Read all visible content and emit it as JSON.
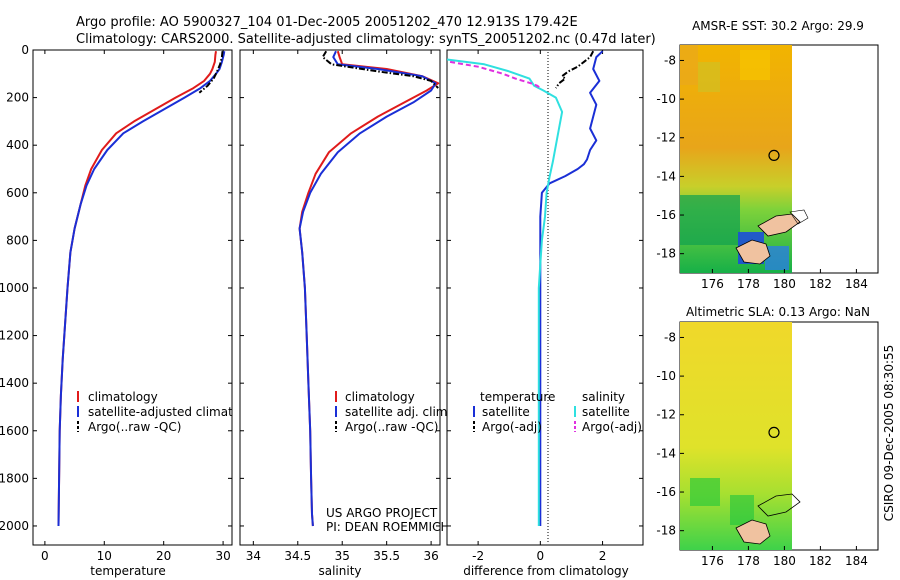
{
  "header": {
    "line1": "Argo profile: AO 5900327_104 01-Dec-2005 20051202_470 12.913S 179.42E",
    "line2": "Climatology: CARS2000. Satellite-adjusted climatology: synTS_20051202.nc (0.47d later)"
  },
  "side_label": "CSIRO 09-Dec-2005 08:30:55",
  "colors": {
    "climatology": "#e01b1b",
    "satellite": "#1a2fd6",
    "argo": "#000000",
    "cyan": "#2fe0e0",
    "magenta": "#e030e0"
  },
  "chart_data": [
    {
      "type": "line",
      "id": "temperature",
      "xlabel": "temperature",
      "xlim": [
        -2,
        31.5
      ],
      "ylim": [
        0,
        2080
      ],
      "xticks": [
        "0",
        "10",
        "20",
        "30"
      ],
      "yticks": [
        "0",
        "200",
        "400",
        "600",
        "800",
        "1000",
        "1200",
        "1400",
        "1600",
        "1800",
        "2000"
      ],
      "legend": [
        "climatology",
        "satellite-adjusted climatology",
        "Argo(..raw -QC)"
      ],
      "series": [
        {
          "name": "climatology",
          "color": "#e01b1b",
          "style": "solid",
          "x": [
            28.8,
            28.7,
            28.6,
            28.2,
            27.8,
            26.8,
            25.0,
            22.0,
            18.5,
            15.0,
            12.0,
            9.6,
            7.8,
            6.8,
            6.0,
            5.0,
            4.3,
            3.8,
            3.4,
            3.0,
            2.7,
            2.5,
            2.4,
            2.3
          ],
          "y": [
            5,
            20,
            50,
            80,
            100,
            130,
            160,
            200,
            250,
            300,
            350,
            420,
            500,
            570,
            650,
            750,
            850,
            1000,
            1150,
            1300,
            1450,
            1600,
            1800,
            2000
          ]
        },
        {
          "name": "satellite-adjusted climatology",
          "color": "#1a2fd6",
          "style": "solid",
          "x": [
            30.2,
            30.1,
            29.8,
            29.4,
            28.8,
            27.8,
            26.2,
            23.5,
            20.0,
            16.5,
            13.2,
            10.5,
            8.3,
            7.0,
            6.0,
            5.0,
            4.3,
            3.8,
            3.4,
            3.0,
            2.7,
            2.5,
            2.4,
            2.3
          ],
          "y": [
            5,
            20,
            50,
            80,
            100,
            130,
            160,
            200,
            250,
            300,
            350,
            420,
            500,
            570,
            650,
            750,
            850,
            1000,
            1150,
            1300,
            1450,
            1600,
            1800,
            2000
          ]
        },
        {
          "name": "Argo(..raw -QC)",
          "color": "#000000",
          "style": "dashdot",
          "x": [
            29.9,
            29.8,
            29.5,
            29.0,
            28.4,
            27.4,
            26.0
          ],
          "y": [
            5,
            30,
            60,
            90,
            120,
            150,
            180
          ]
        }
      ]
    },
    {
      "type": "line",
      "id": "salinity",
      "xlabel": "salinity",
      "xlim": [
        33.85,
        36.1
      ],
      "ylim": [
        0,
        2080
      ],
      "xticks": [
        "34",
        "34.5",
        "35",
        "35.5",
        "36"
      ],
      "legend": [
        "climatology",
        "satellite adj. clim.",
        "Argo(..raw -QC)"
      ],
      "annotation": [
        "US ARGO PROJECT",
        "PI: DEAN ROEMMICH"
      ],
      "series": [
        {
          "name": "climatology",
          "color": "#e01b1b",
          "style": "solid",
          "x": [
            34.95,
            34.97,
            35.0,
            35.5,
            35.9,
            36.08,
            35.95,
            35.7,
            35.4,
            35.1,
            34.85,
            34.7,
            34.62,
            34.55,
            34.52,
            34.55,
            34.58,
            34.6,
            34.62,
            34.64,
            34.65,
            34.66,
            34.67
          ],
          "y": [
            5,
            30,
            60,
            80,
            110,
            140,
            170,
            220,
            280,
            350,
            430,
            520,
            600,
            680,
            750,
            850,
            1000,
            1200,
            1400,
            1600,
            1800,
            1950,
            2000
          ]
        },
        {
          "name": "satellite adj. clim.",
          "color": "#1a2fd6",
          "style": "solid",
          "x": [
            34.93,
            34.9,
            34.95,
            35.4,
            35.9,
            36.05,
            36.0,
            35.8,
            35.5,
            35.2,
            34.95,
            34.76,
            34.64,
            34.56,
            34.52,
            34.55,
            34.58,
            34.6,
            34.62,
            34.64,
            34.65,
            34.66,
            34.67
          ],
          "y": [
            5,
            30,
            60,
            80,
            110,
            140,
            170,
            220,
            280,
            350,
            430,
            520,
            600,
            680,
            750,
            850,
            1000,
            1200,
            1400,
            1600,
            1800,
            1950,
            2000
          ]
        },
        {
          "name": "Argo(..raw -QC)",
          "color": "#000000",
          "style": "dashdot",
          "x": [
            34.82,
            34.78,
            34.88,
            35.4,
            35.8,
            36.0,
            36.08
          ],
          "y": [
            5,
            30,
            60,
            90,
            110,
            130,
            160
          ]
        }
      ]
    },
    {
      "type": "line",
      "id": "difference",
      "xlabel": "difference from climatology",
      "xlim": [
        -3.0,
        3.3
      ],
      "ylim": [
        0,
        2080
      ],
      "xticks": [
        "-2",
        "0",
        "2"
      ],
      "legend_titles": [
        "temperature",
        "salinity"
      ],
      "legend": [
        "satellite",
        "Argo(-adj)",
        "satellite",
        "Argo(-adj)"
      ],
      "series": [
        {
          "name": "temperature satellite",
          "color": "#1a2fd6",
          "style": "solid",
          "x": [
            2.0,
            1.8,
            1.7,
            1.9,
            1.6,
            1.8,
            1.7,
            1.6,
            1.8,
            1.6,
            1.5,
            1.4,
            1.2,
            0.8,
            0.3,
            0.05,
            0.0,
            0.0,
            0.0,
            0.0
          ],
          "y": [
            5,
            30,
            80,
            130,
            180,
            230,
            280,
            330,
            380,
            420,
            460,
            480,
            500,
            530,
            560,
            600,
            700,
            900,
            1500,
            2000
          ]
        },
        {
          "name": "temperature Argo(-adj)",
          "color": "#000000",
          "style": "dashdot",
          "x": [
            1.7,
            1.6,
            1.4,
            1.2,
            0.9,
            0.7,
            0.8,
            0.6,
            0.5
          ],
          "y": [
            5,
            30,
            50,
            70,
            90,
            110,
            120,
            140,
            160
          ]
        },
        {
          "name": "salinity satellite",
          "color": "#2fe0e0",
          "style": "solid",
          "x": [
            -3.0,
            -1.8,
            -1.0,
            -0.35,
            -0.2,
            0.1,
            0.5,
            0.7,
            0.6,
            0.5,
            0.4,
            0.3,
            0.2,
            0.15,
            0.05,
            0.0,
            -0.05,
            -0.05,
            -0.05
          ],
          "y": [
            40,
            60,
            90,
            120,
            150,
            170,
            200,
            260,
            330,
            400,
            470,
            530,
            600,
            700,
            800,
            900,
            1000,
            1500,
            2000
          ]
        },
        {
          "name": "salinity Argo(-adj)",
          "color": "#e030e0",
          "style": "dashed",
          "x": [
            -2.9,
            -2.0,
            -1.2,
            -0.8,
            -0.3,
            -0.1,
            0.0
          ],
          "y": [
            50,
            70,
            100,
            120,
            140,
            150,
            160
          ]
        }
      ]
    }
  ],
  "maps": [
    {
      "id": "sst",
      "title": "AMSR-E SST: 30.2 Argo: 29.9",
      "xticks": [
        "176",
        "178",
        "180",
        "182",
        "184"
      ],
      "yticks": [
        "-8",
        "-10",
        "-12",
        "-14",
        "-16",
        "-18"
      ],
      "xlim": [
        174.2,
        185.2
      ],
      "ylim": [
        -19.0,
        -7.2
      ],
      "argo_lon": 179.42,
      "argo_lat": -12.913
    },
    {
      "id": "sla",
      "title": "Altimetric SLA: 0.13 Argo: NaN",
      "xticks": [
        "176",
        "178",
        "180",
        "182",
        "184"
      ],
      "yticks": [
        "-8",
        "-10",
        "-12",
        "-14",
        "-16",
        "-18"
      ],
      "xlim": [
        174.2,
        185.2
      ],
      "ylim": [
        -19.0,
        -7.2
      ],
      "argo_lon": 179.42,
      "argo_lat": -12.913
    }
  ]
}
